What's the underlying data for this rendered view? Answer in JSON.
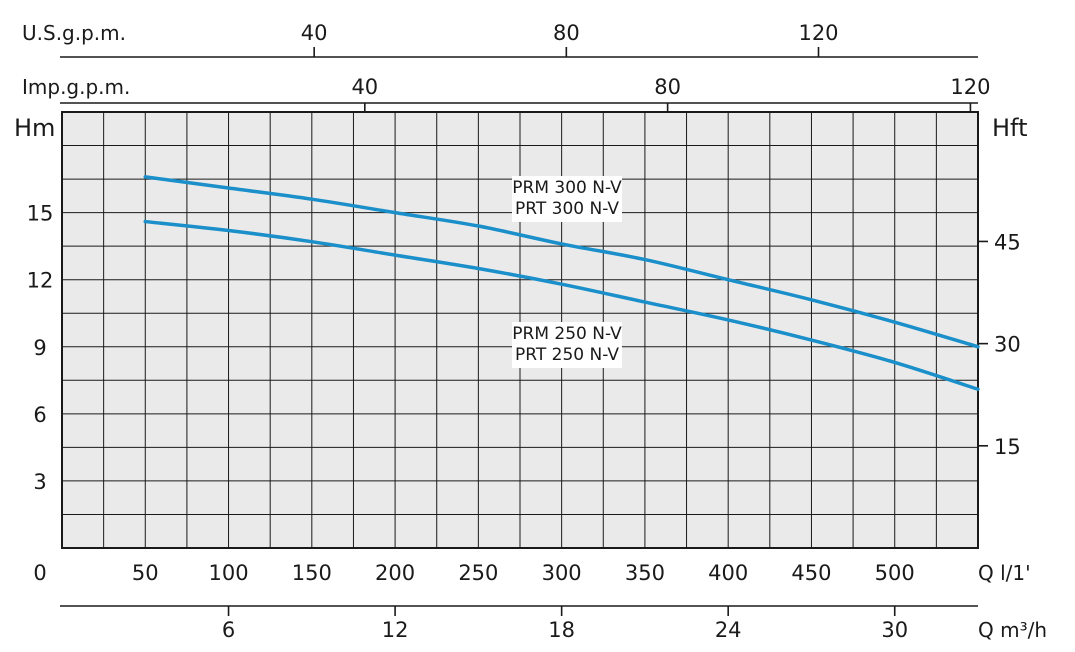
{
  "chart_data": {
    "type": "line",
    "title": "",
    "colors": {
      "curve": "#1a8fca",
      "plot_background": "#eaeaea",
      "grid": "#1a1a1a"
    },
    "grid": true,
    "x_primary": {
      "label": "Q l/1'",
      "ticks": [
        "0",
        "50",
        "100",
        "150",
        "200",
        "250",
        "300",
        "350",
        "400",
        "450",
        "500"
      ],
      "range": [
        0,
        550
      ]
    },
    "x_secondary_m3h": {
      "label": "Q m³/h",
      "ticks": [
        "6",
        "12",
        "18",
        "24",
        "30"
      ],
      "range": [
        0,
        33
      ]
    },
    "x_top_usgpm": {
      "label": "U.S.g.p.m.",
      "ticks": [
        "40",
        "80",
        "120"
      ],
      "range": [
        0,
        145.3
      ]
    },
    "x_top_impgpm": {
      "label": "Imp.g.p.m.",
      "ticks": [
        "40",
        "80",
        "120"
      ],
      "range": [
        0,
        121
      ]
    },
    "y_left": {
      "label": "Hm",
      "ticks": [
        "3",
        "6",
        "9",
        "12",
        "15"
      ],
      "range": [
        0,
        19.5
      ]
    },
    "y_right": {
      "label": "Hft",
      "ticks": [
        "15",
        "30",
        "45"
      ],
      "range": [
        0,
        64
      ]
    },
    "series": [
      {
        "labels": [
          "PRM 300 N-V",
          "PRT 300 N-V"
        ],
        "x": [
          50,
          100,
          150,
          200,
          250,
          300,
          350,
          400,
          450,
          500,
          550
        ],
        "y": [
          16.6,
          16.1,
          15.6,
          15.0,
          14.4,
          13.6,
          12.9,
          12.0,
          11.1,
          10.1,
          9.0
        ]
      },
      {
        "labels": [
          "PRM 250 N-V",
          "PRT 250 N-V"
        ],
        "x": [
          50,
          100,
          150,
          200,
          250,
          300,
          350,
          400,
          450,
          500,
          550
        ],
        "y": [
          14.6,
          14.2,
          13.7,
          13.1,
          12.5,
          11.8,
          11.0,
          10.2,
          9.3,
          8.3,
          7.1
        ]
      }
    ]
  }
}
